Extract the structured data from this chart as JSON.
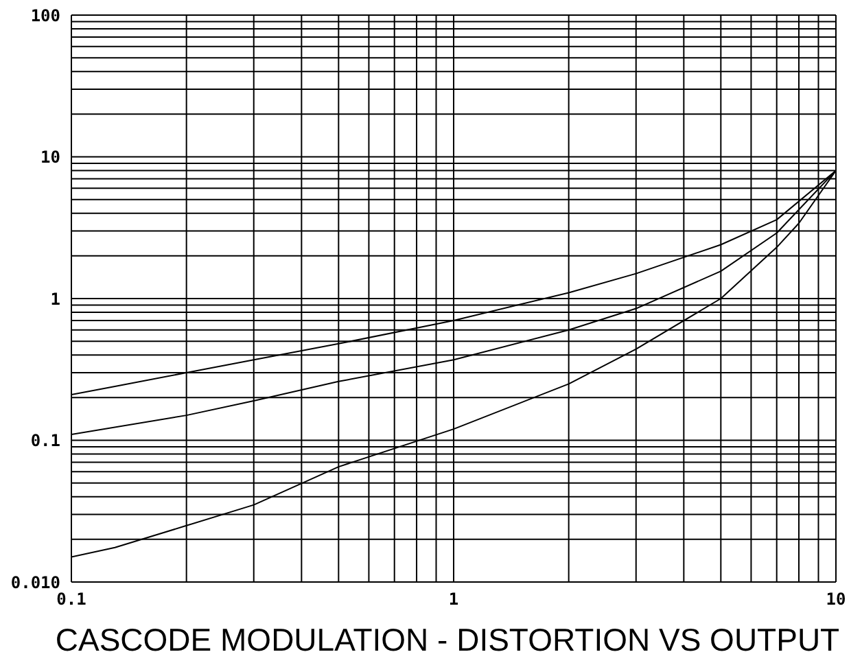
{
  "chart_data": {
    "type": "line",
    "title": "CASCODE MODULATION - DISTORTION VS OUTPUT",
    "log": "xy",
    "grid": true,
    "marker": "none",
    "line_style": "solid",
    "xlim": [
      0.1,
      10
    ],
    "ylim": [
      0.01,
      100
    ],
    "xticks": [
      0.1,
      {
        "value": 0.2,
        "label": null
      },
      {
        "value": 0.3,
        "label": null
      },
      {
        "value": 0.4,
        "label": null
      },
      {
        "value": 0.5,
        "label": null
      },
      {
        "value": 0.6,
        "label": null
      },
      {
        "value": 0.7,
        "label": null
      },
      {
        "value": 0.8,
        "label": null
      },
      {
        "value": 0.9,
        "label": null
      },
      1,
      {
        "value": 2,
        "label": null
      },
      {
        "value": 3,
        "label": null
      },
      {
        "value": 4,
        "label": null
      },
      {
        "value": 5,
        "label": null
      },
      {
        "value": 6,
        "label": null
      },
      {
        "value": 7,
        "label": null
      },
      {
        "value": 8,
        "label": null
      },
      {
        "value": 9,
        "label": null
      },
      10
    ],
    "yticks": [
      {
        "value": 0.01,
        "label": "0.010"
      },
      {
        "value": 0.02,
        "label": null
      },
      {
        "value": 0.03,
        "label": null
      },
      {
        "value": 0.04,
        "label": null
      },
      {
        "value": 0.05,
        "label": null
      },
      {
        "value": 0.06,
        "label": null
      },
      {
        "value": 0.07,
        "label": null
      },
      {
        "value": 0.08,
        "label": null
      },
      {
        "value": 0.09,
        "label": null
      },
      0.1,
      {
        "value": 0.2,
        "label": null
      },
      {
        "value": 0.3,
        "label": null
      },
      {
        "value": 0.4,
        "label": null
      },
      {
        "value": 0.5,
        "label": null
      },
      {
        "value": 0.6,
        "label": null
      },
      {
        "value": 0.7,
        "label": null
      },
      {
        "value": 0.8,
        "label": null
      },
      {
        "value": 0.9,
        "label": null
      },
      1,
      {
        "value": 2,
        "label": null
      },
      {
        "value": 3,
        "label": null
      },
      {
        "value": 4,
        "label": null
      },
      {
        "value": 5,
        "label": null
      },
      {
        "value": 6,
        "label": null
      },
      {
        "value": 7,
        "label": null
      },
      {
        "value": 8,
        "label": null
      },
      {
        "value": 9,
        "label": null
      },
      10,
      {
        "value": 20,
        "label": null
      },
      {
        "value": 30,
        "label": null
      },
      {
        "value": 40,
        "label": null
      },
      {
        "value": 50,
        "label": null
      },
      {
        "value": 60,
        "label": null
      },
      {
        "value": 70,
        "label": null
      },
      {
        "value": 80,
        "label": null
      },
      {
        "value": 90,
        "label": null
      },
      100
    ],
    "series": [
      {
        "color": "#000000",
        "x": [
          0.1,
          0.13,
          0.2,
          0.3,
          0.5,
          1,
          2,
          3,
          5,
          7,
          10
        ],
        "values": [
          0.21,
          0.24,
          0.3,
          0.37,
          0.48,
          0.7,
          1.1,
          1.5,
          2.4,
          3.6,
          8
        ]
      },
      {
        "color": "#000000",
        "x": [
          0.1,
          0.2,
          0.3,
          0.5,
          1,
          2,
          3,
          5,
          7,
          10
        ],
        "values": [
          0.11,
          0.15,
          0.19,
          0.26,
          0.37,
          0.6,
          0.85,
          1.56,
          2.9,
          8
        ]
      },
      {
        "color": "#000000",
        "x": [
          0.1,
          0.13,
          0.2,
          0.3,
          0.5,
          1,
          2,
          3,
          5,
          7,
          8,
          10
        ],
        "values": [
          0.015,
          0.0175,
          0.025,
          0.035,
          0.065,
          0.12,
          0.25,
          0.44,
          1.0,
          2.3,
          3.4,
          8
        ]
      }
    ]
  }
}
